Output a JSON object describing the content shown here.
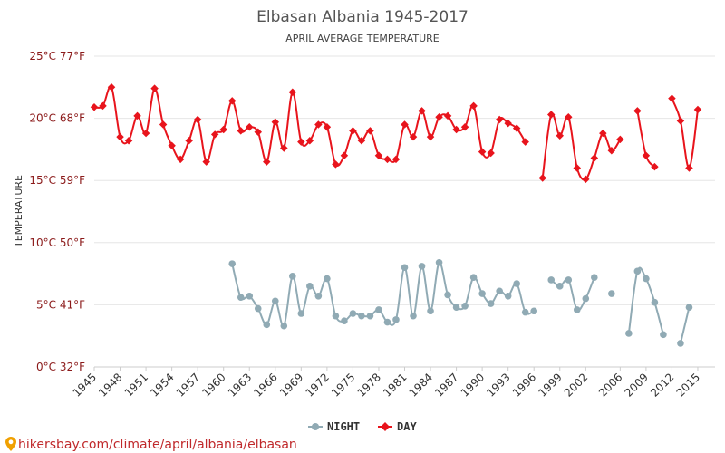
{
  "chart_data": {
    "type": "line",
    "title": "Elbasan Albania 1945-2017",
    "subtitle": "APRIL AVERAGE TEMPERATURE",
    "ylabel": "TEMPERATURE",
    "xlabel": "",
    "ylim": [
      0,
      25
    ],
    "xlim": [
      1945,
      2017
    ],
    "yticks": [
      {
        "value": 0,
        "label": "0°C 32°F"
      },
      {
        "value": 5,
        "label": "5°C 41°F"
      },
      {
        "value": 10,
        "label": "10°C 50°F"
      },
      {
        "value": 15,
        "label": "15°C 59°F"
      },
      {
        "value": 20,
        "label": "20°C 68°F"
      },
      {
        "value": 25,
        "label": "25°C 77°F"
      }
    ],
    "xticks": [
      "1945",
      "1948",
      "1951",
      "1954",
      "1957",
      "1960",
      "1963",
      "1966",
      "1969",
      "1972",
      "1975",
      "1978",
      "1981",
      "1984",
      "1987",
      "1990",
      "1993",
      "1996",
      "1999",
      "2002",
      "2006",
      "2009",
      "2012",
      "2015"
    ],
    "legend_position": "bottom-center",
    "series": [
      {
        "name": "NIGHT",
        "color": "#90aab4",
        "values": [
          null,
          null,
          null,
          null,
          null,
          null,
          null,
          null,
          null,
          null,
          null,
          null,
          null,
          null,
          null,
          null,
          8.3,
          5.6,
          5.7,
          4.7,
          3.4,
          5.3,
          3.3,
          7.3,
          4.3,
          6.5,
          5.7,
          7.1,
          4.1,
          3.7,
          4.3,
          4.1,
          4.1,
          4.6,
          3.6,
          3.8,
          8.0,
          4.1,
          8.1,
          4.5,
          8.4,
          5.8,
          4.8,
          4.9,
          7.2,
          5.9,
          5.1,
          6.1,
          5.7,
          6.7,
          4.4,
          4.5,
          null,
          7.0,
          6.5,
          7.0,
          4.6,
          5.5,
          7.2,
          null,
          5.9,
          null,
          2.7,
          7.7,
          7.1,
          5.2,
          2.6,
          null,
          1.9,
          4.8,
          null
        ]
      },
      {
        "name": "DAY",
        "color": "#e8141c",
        "values": [
          20.9,
          21.0,
          22.5,
          18.5,
          18.2,
          20.2,
          18.8,
          22.4,
          19.5,
          17.8,
          16.7,
          18.2,
          19.9,
          16.5,
          18.7,
          19.1,
          21.4,
          19.0,
          19.3,
          18.9,
          16.5,
          19.7,
          17.6,
          22.1,
          18.1,
          18.2,
          19.5,
          19.3,
          16.3,
          17.0,
          19.0,
          18.2,
          19.0,
          17.0,
          16.7,
          16.7,
          19.5,
          18.5,
          20.6,
          18.5,
          20.1,
          20.2,
          19.1,
          19.3,
          21.0,
          17.3,
          17.2,
          19.9,
          19.6,
          19.2,
          18.1,
          null,
          15.2,
          20.3,
          18.6,
          20.1,
          16.0,
          15.1,
          16.8,
          18.8,
          17.4,
          18.3,
          null,
          20.6,
          17.0,
          16.1,
          null,
          21.6,
          19.8,
          16.0,
          20.7
        ]
      }
    ]
  },
  "footer": {
    "source_text": "hikersbay.com/climate/april/albania/elbasan"
  }
}
